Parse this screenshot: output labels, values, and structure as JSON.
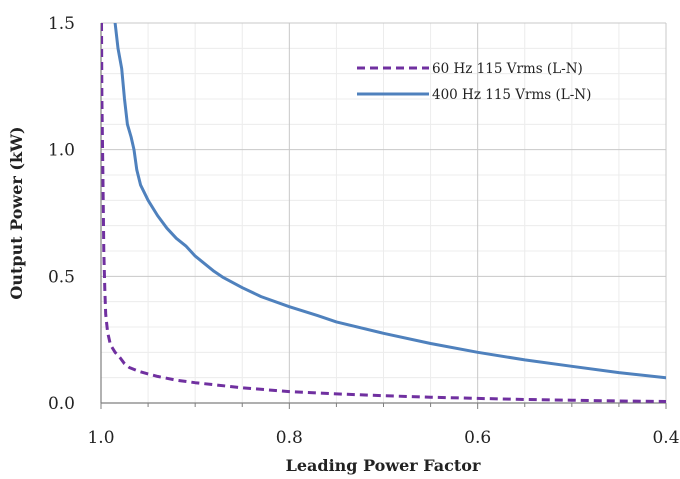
{
  "chart_data": {
    "type": "line",
    "title": "",
    "xlabel": "Leading Power Factor",
    "ylabel": "Output Power (kW)",
    "xlim": [
      1.0,
      0.4
    ],
    "ylim": [
      0.0,
      1.5
    ],
    "x_reversed": true,
    "x_ticks": [
      "1.0",
      "0.8",
      "0.6",
      "0.4"
    ],
    "y_ticks": [
      "0.0",
      "0.5",
      "1.0",
      "1.5"
    ],
    "grid": true,
    "legend_position": "top-right",
    "series": [
      {
        "name": "60 Hz 115 Vrms (L-N)",
        "color": "#7030a0",
        "style": "dashed",
        "points": [
          [
            0.9995,
            1.5
          ],
          [
            0.999,
            1.2
          ],
          [
            0.998,
            0.9
          ],
          [
            0.997,
            0.6
          ],
          [
            0.996,
            0.45
          ],
          [
            0.995,
            0.35
          ],
          [
            0.993,
            0.28
          ],
          [
            0.99,
            0.23
          ],
          [
            0.985,
            0.2
          ],
          [
            0.98,
            0.18
          ],
          [
            0.975,
            0.155
          ],
          [
            0.97,
            0.14
          ],
          [
            0.96,
            0.125
          ],
          [
            0.95,
            0.115
          ],
          [
            0.94,
            0.105
          ],
          [
            0.92,
            0.09
          ],
          [
            0.9,
            0.08
          ],
          [
            0.85,
            0.06
          ],
          [
            0.8,
            0.045
          ],
          [
            0.75,
            0.036
          ],
          [
            0.7,
            0.029
          ],
          [
            0.65,
            0.023
          ],
          [
            0.6,
            0.018
          ],
          [
            0.55,
            0.014
          ],
          [
            0.5,
            0.011
          ],
          [
            0.45,
            0.008
          ],
          [
            0.4,
            0.006
          ]
        ]
      },
      {
        "name": "400 Hz 115 Vrms (L-N)",
        "color": "#4f81bd",
        "style": "solid",
        "points": [
          [
            0.985,
            1.5
          ],
          [
            0.982,
            1.4
          ],
          [
            0.978,
            1.32
          ],
          [
            0.975,
            1.2
          ],
          [
            0.972,
            1.1
          ],
          [
            0.968,
            1.05
          ],
          [
            0.965,
            1.0
          ],
          [
            0.962,
            0.92
          ],
          [
            0.958,
            0.86
          ],
          [
            0.95,
            0.8
          ],
          [
            0.94,
            0.74
          ],
          [
            0.93,
            0.69
          ],
          [
            0.92,
            0.65
          ],
          [
            0.91,
            0.62
          ],
          [
            0.9,
            0.58
          ],
          [
            0.89,
            0.55
          ],
          [
            0.88,
            0.52
          ],
          [
            0.87,
            0.495
          ],
          [
            0.85,
            0.455
          ],
          [
            0.83,
            0.42
          ],
          [
            0.8,
            0.38
          ],
          [
            0.77,
            0.345
          ],
          [
            0.75,
            0.32
          ],
          [
            0.7,
            0.275
          ],
          [
            0.65,
            0.235
          ],
          [
            0.6,
            0.2
          ],
          [
            0.55,
            0.17
          ],
          [
            0.5,
            0.145
          ],
          [
            0.45,
            0.12
          ],
          [
            0.4,
            0.1
          ]
        ]
      }
    ]
  }
}
